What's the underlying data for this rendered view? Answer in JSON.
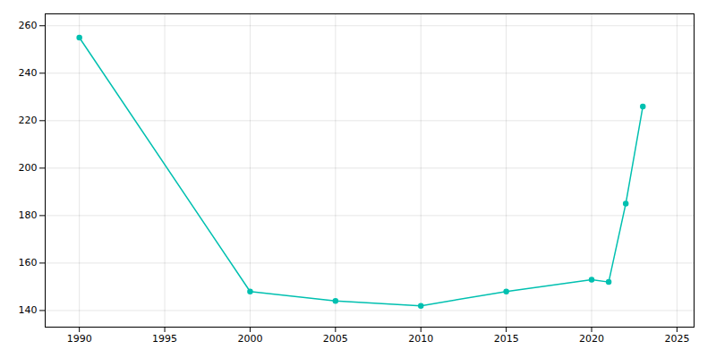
{
  "chart_data": {
    "type": "line",
    "x": [
      1990,
      2000,
      2005,
      2010,
      2015,
      2020,
      2021,
      2022,
      2023
    ],
    "values": [
      255,
      148,
      144,
      142,
      148,
      153,
      152,
      185,
      226
    ],
    "color": "#00c0b0",
    "marker": "circle",
    "xlim": [
      1988,
      2026
    ],
    "ylim": [
      133,
      265
    ],
    "xticks": [
      1990,
      1995,
      2000,
      2005,
      2010,
      2015,
      2020,
      2025
    ],
    "yticks": [
      140,
      160,
      180,
      200,
      220,
      240,
      260
    ],
    "grid": true
  }
}
